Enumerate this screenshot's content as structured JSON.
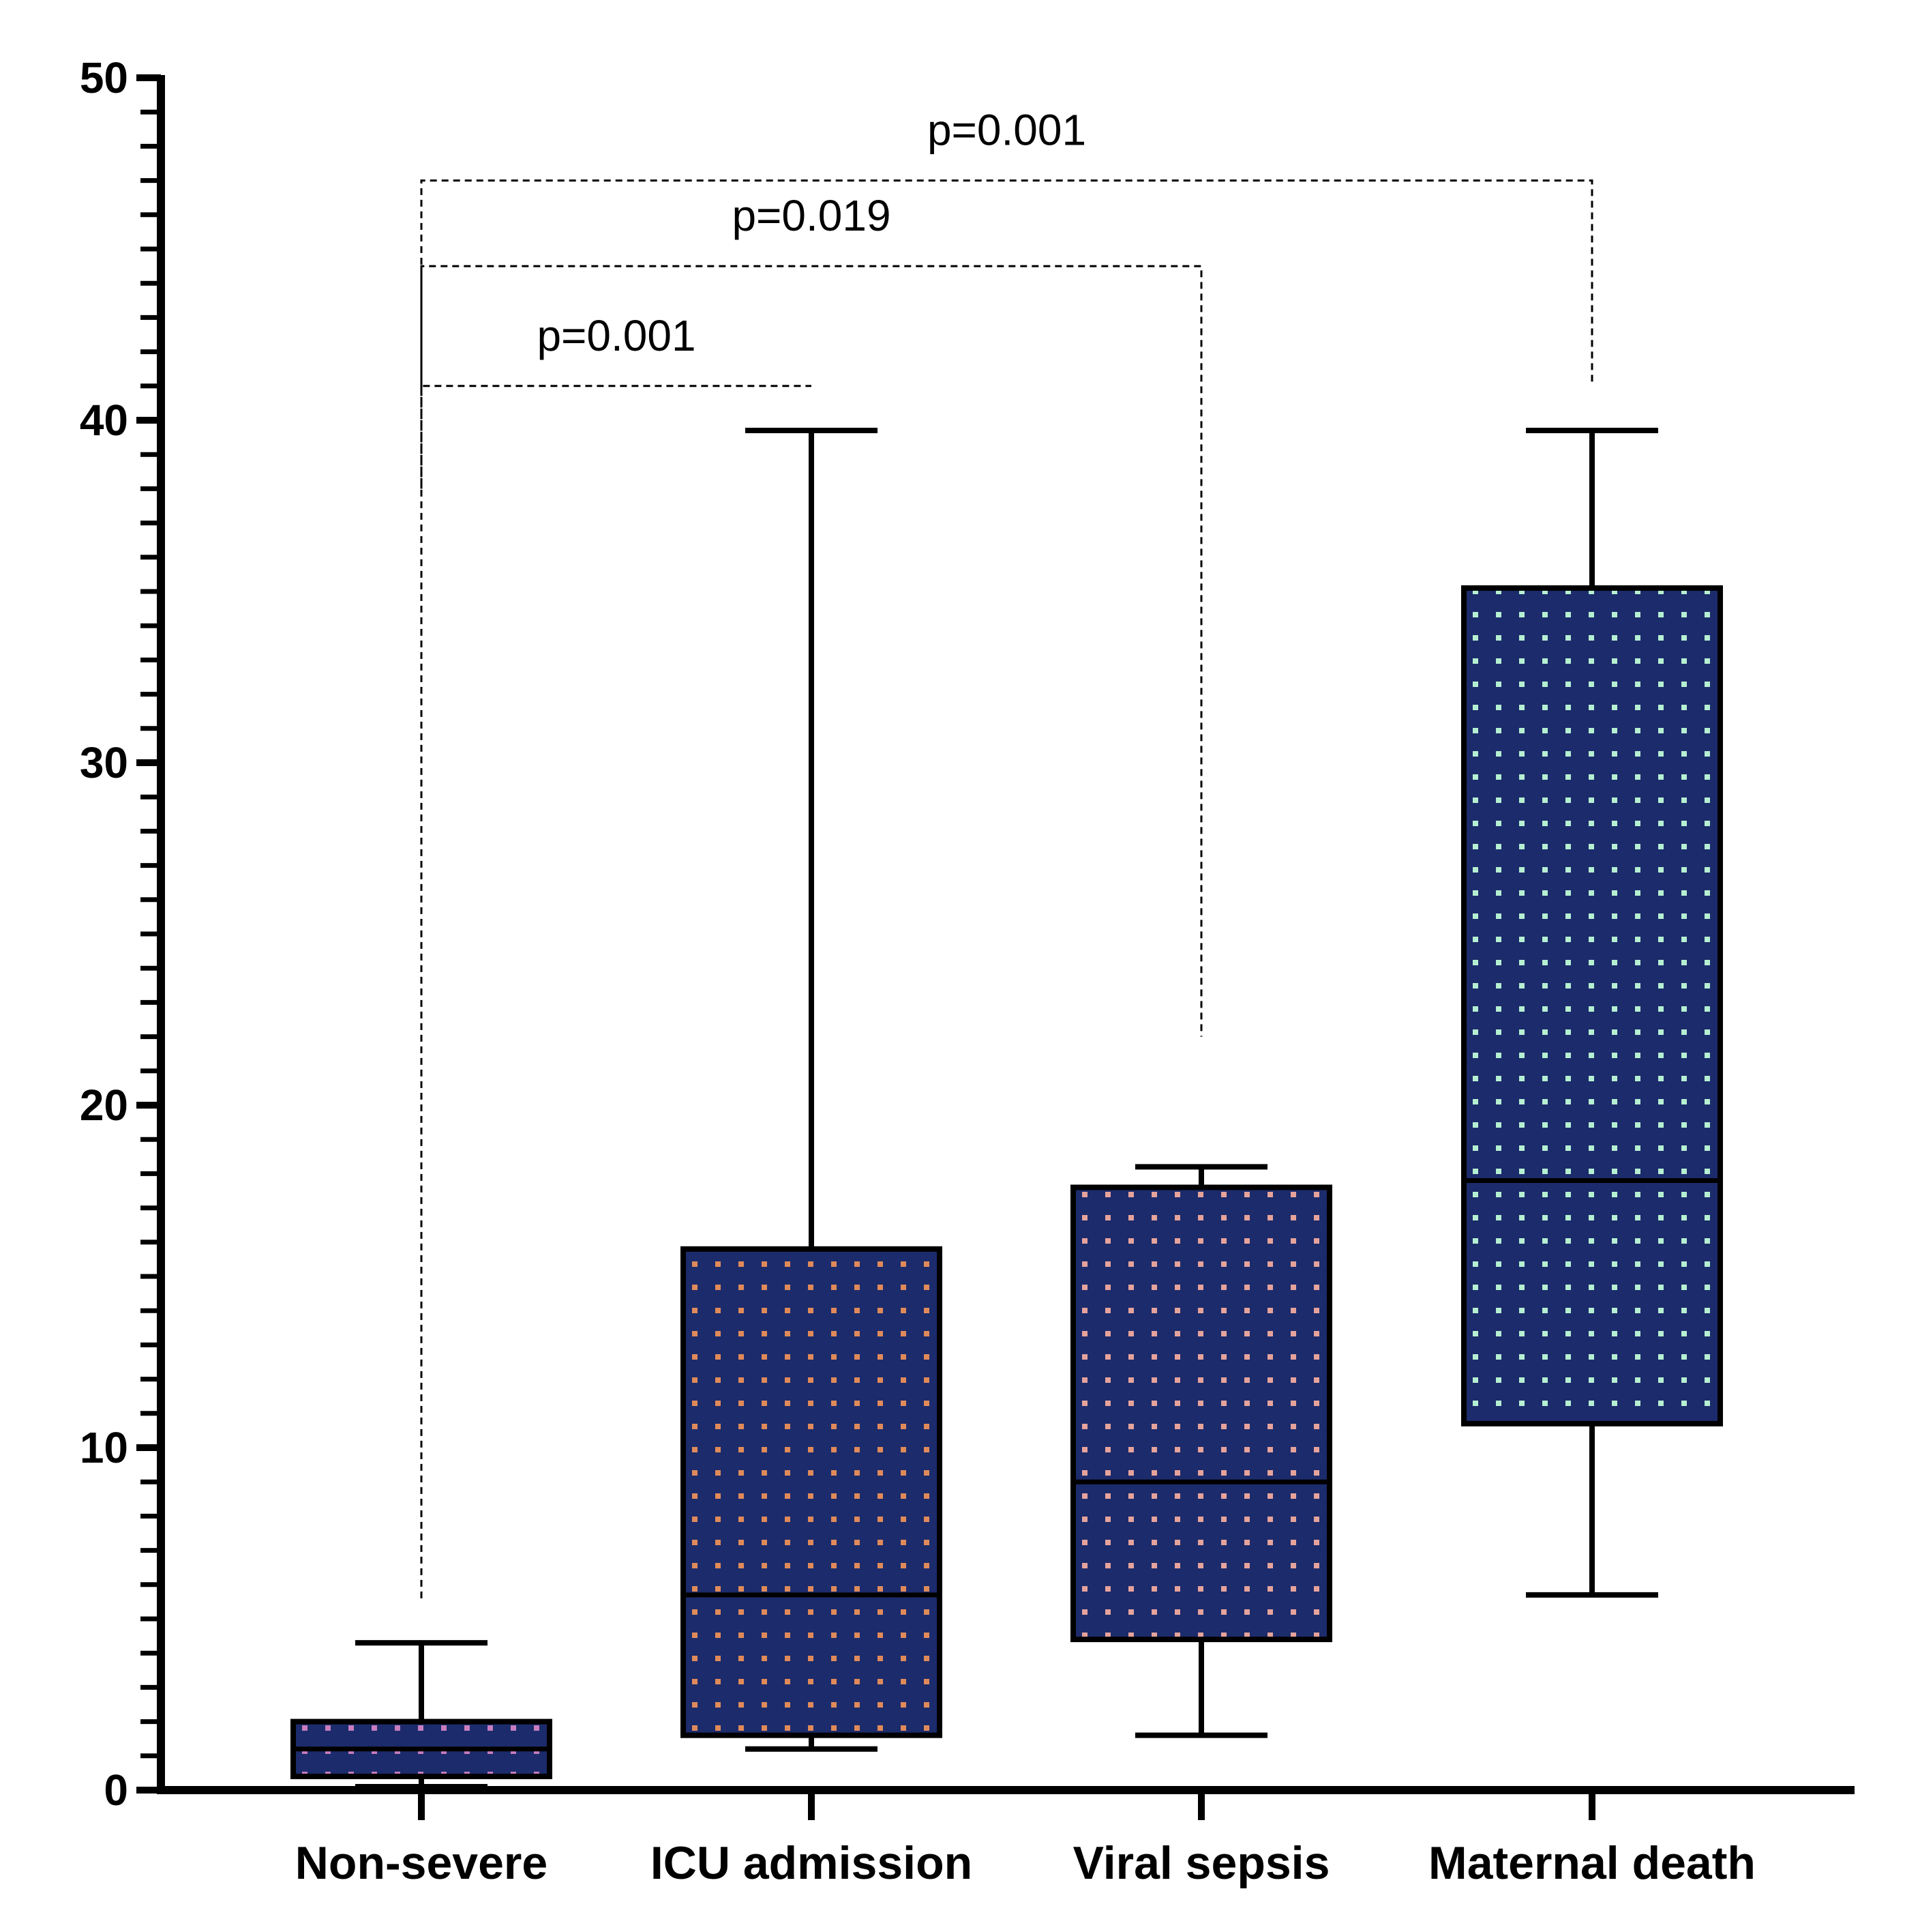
{
  "chart_data": {
    "type": "box",
    "title": "",
    "xlabel": "",
    "ylabel": "",
    "ylim": [
      0,
      50
    ],
    "y_major_ticks": [
      0,
      10,
      20,
      30,
      40,
      50
    ],
    "y_minor_step": 1,
    "grid": false,
    "categories": [
      "Non-severe",
      "ICU admission",
      "Viral sepsis",
      "Maternal death"
    ],
    "boxes": [
      {
        "name": "Non-severe",
        "min": 0.1,
        "q1": 0.4,
        "median": 1.2,
        "q3": 2.0,
        "max": 4.3,
        "dot_color": "#c77dbe"
      },
      {
        "name": "ICU admission",
        "min": 1.2,
        "q1": 1.6,
        "median": 5.7,
        "q3": 15.8,
        "max": 39.7,
        "dot_color": "#e08a5a"
      },
      {
        "name": "Viral sepsis",
        "min": 1.6,
        "q1": 4.4,
        "median": 9.0,
        "q3": 17.6,
        "max": 18.2,
        "dot_color": "#e6a39b"
      },
      {
        "name": "Maternal death",
        "min": 5.7,
        "q1": 10.7,
        "median": 17.8,
        "q3": 35.1,
        "max": 39.7,
        "dot_color": "#b6f0d2"
      }
    ],
    "box_fill": "#1c2b6b",
    "comparisons": [
      {
        "from": "Non-severe",
        "to": "ICU admission",
        "label": "p=0.001",
        "bracket_y": 41.0,
        "left_bottom_y": 38.0,
        "right_bottom_y": 41.0
      },
      {
        "from": "Non-severe",
        "to": "Viral sepsis",
        "label": "p=0.019",
        "bracket_y": 44.5,
        "left_bottom_y": 41.0,
        "right_bottom_y": 22.0
      },
      {
        "from": "Non-severe",
        "to": "Maternal death",
        "label": "p=0.001",
        "bracket_y": 47.0,
        "left_bottom_y": 5.6,
        "right_bottom_y": 41.0
      }
    ]
  }
}
